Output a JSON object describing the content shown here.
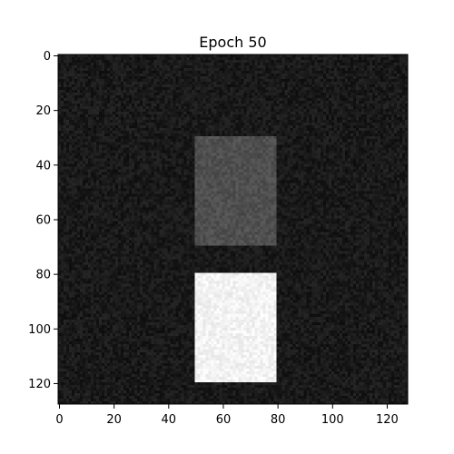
{
  "chart_data": {
    "type": "heatmap",
    "title": "Epoch 50",
    "xlabel": "",
    "ylabel": "",
    "colormap": "gray",
    "image_size": [
      128,
      128
    ],
    "x_range": [
      -0.5,
      127.5
    ],
    "y_range": [
      127.5,
      -0.5
    ],
    "x_ticks": [
      0,
      20,
      40,
      60,
      80,
      100,
      120
    ],
    "y_ticks": [
      0,
      20,
      40,
      60,
      80,
      100,
      120
    ],
    "x_tick_labels": [
      "0",
      "20",
      "40",
      "60",
      "80",
      "100",
      "120"
    ],
    "y_tick_labels": [
      "0",
      "20",
      "40",
      "60",
      "80",
      "100",
      "120"
    ],
    "background_level": 0.1,
    "noise_amplitude": 0.05,
    "regions": [
      {
        "x_start": 50,
        "x_end": 80,
        "y_start": 30,
        "y_end": 70,
        "level": 0.31
      },
      {
        "x_start": 50,
        "x_end": 80,
        "y_start": 80,
        "y_end": 120,
        "level": 0.95
      }
    ],
    "grid": false,
    "legend": "none"
  }
}
